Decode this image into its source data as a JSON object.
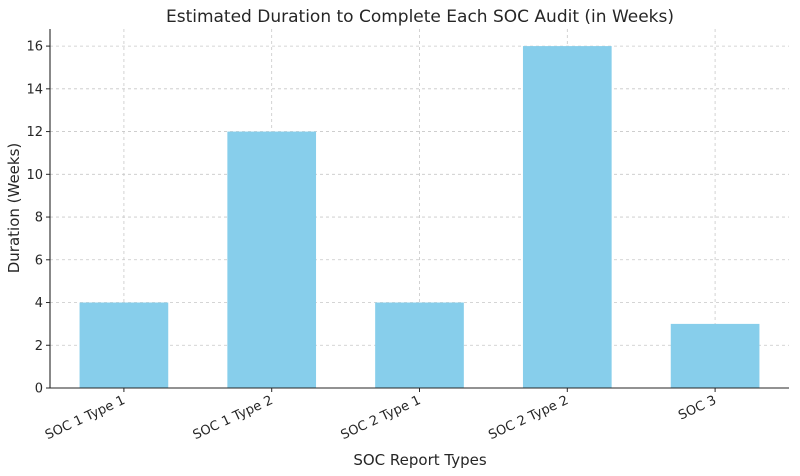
{
  "chart_data": {
    "type": "bar",
    "title": "Estimated Duration to Complete Each SOC Audit (in Weeks)",
    "xlabel": "SOC Report Types",
    "ylabel": "Duration (Weeks)",
    "categories": [
      "SOC 1 Type 1",
      "SOC 1 Type 2",
      "SOC 2 Type 1",
      "SOC 2 Type 2",
      "SOC 3"
    ],
    "values": [
      4,
      12,
      4,
      16,
      3
    ],
    "ylim": [
      0,
      16.8
    ],
    "yticks": [
      0,
      2,
      4,
      6,
      8,
      10,
      12,
      14,
      16
    ],
    "grid": true,
    "colors": {
      "bar": "#87ceeb",
      "grid": "#c8c8c8",
      "axis": "#262626"
    }
  }
}
